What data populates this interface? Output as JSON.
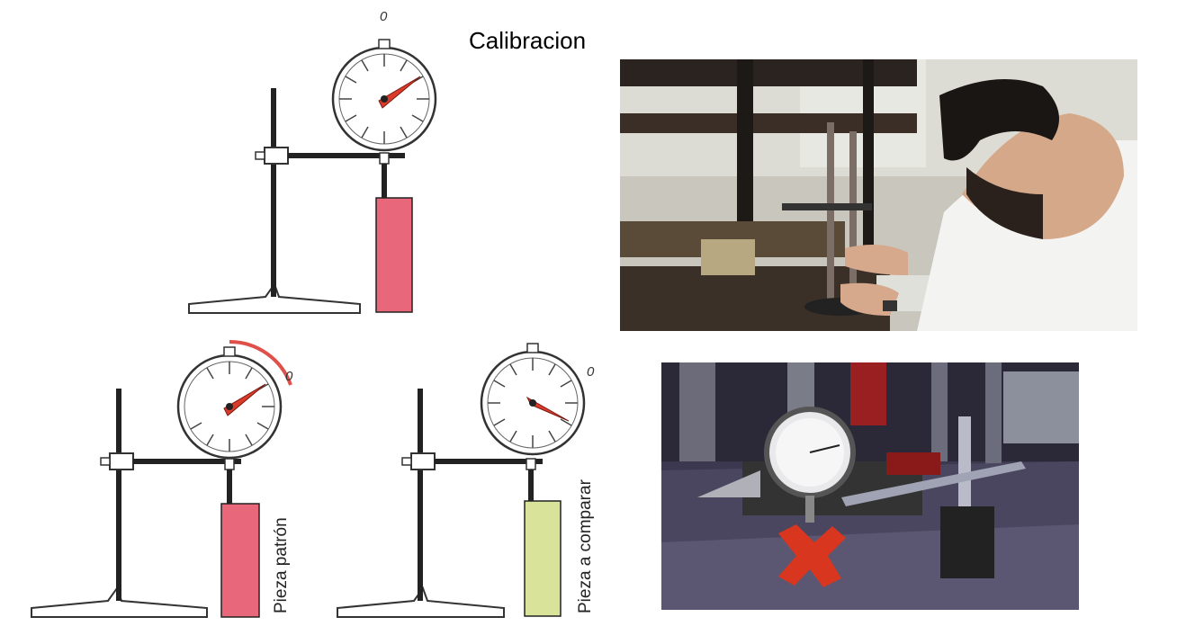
{
  "title": "Calibracion",
  "diagrams": {
    "top": {
      "dial_zero_label": "0"
    },
    "bottom_left": {
      "dial_zero_label": "0",
      "piece_label": "Pieza patrón"
    },
    "bottom_right": {
      "dial_zero_label": "0",
      "piece_label": "Pieza a comparar"
    }
  },
  "colors": {
    "patron_piece": "#e8677a",
    "comparison_piece": "#d9e39a",
    "needle": "#d93a2a",
    "arc": "#e0504a"
  }
}
